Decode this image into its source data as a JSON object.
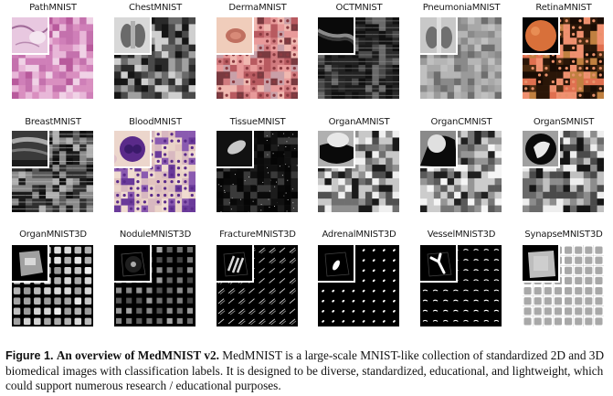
{
  "figure": {
    "panels": [
      {
        "label": "PathMNIST",
        "style": "path",
        "row": 0,
        "col": 0
      },
      {
        "label": "ChestMNIST",
        "style": "chest",
        "row": 0,
        "col": 1
      },
      {
        "label": "DermaMNIST",
        "style": "derma",
        "row": 0,
        "col": 2
      },
      {
        "label": "OCTMNIST",
        "style": "oct",
        "row": 0,
        "col": 3
      },
      {
        "label": "PneumoniaMNIST",
        "style": "pneumonia",
        "row": 0,
        "col": 4
      },
      {
        "label": "RetinaMNIST",
        "style": "retina",
        "row": 0,
        "col": 5
      },
      {
        "label": "BreastMNIST",
        "style": "breast",
        "row": 1,
        "col": 0
      },
      {
        "label": "BloodMNIST",
        "style": "blood",
        "row": 1,
        "col": 1
      },
      {
        "label": "TissueMNIST",
        "style": "tissue",
        "row": 1,
        "col": 2
      },
      {
        "label": "OrganAMNIST",
        "style": "organa",
        "row": 1,
        "col": 3
      },
      {
        "label": "OrganCMNIST",
        "style": "organc",
        "row": 1,
        "col": 4
      },
      {
        "label": "OrganSMNIST",
        "style": "organs",
        "row": 1,
        "col": 5
      },
      {
        "label": "OrganMNIST3D",
        "style": "organ3d",
        "row": 2,
        "col": 0
      },
      {
        "label": "NoduleMNIST3D",
        "style": "nodule3d",
        "row": 2,
        "col": 1
      },
      {
        "label": "FractureMNIST3D",
        "style": "fracture3d",
        "row": 2,
        "col": 2
      },
      {
        "label": "AdrenalMNIST3D",
        "style": "adrenal3d",
        "row": 2,
        "col": 3
      },
      {
        "label": "VesselMNIST3D",
        "style": "vessel3d",
        "row": 2,
        "col": 4
      },
      {
        "label": "SynapseMNIST3D",
        "style": "synapse3d",
        "row": 2,
        "col": 5
      }
    ]
  },
  "caption": {
    "figure_label": "Figure 1.",
    "title": "An overview of MedMNIST v2.",
    "body": "MedMNIST is a large-scale MNIST-like collection of standardized 2D and 3D biomedical images with classification labels. It is designed to be diverse, standardized, educational, and lightweight, which could support numerous research / educational purposes."
  },
  "palettes": {
    "path": [
      "#d98fc0",
      "#c471ad",
      "#e8b7d8",
      "#b85a9c",
      "#f0d2e6",
      "#cf7fb8"
    ],
    "chest": [
      "#2a2a2a",
      "#6a6a6a",
      "#a0a0a0",
      "#4a4a4a",
      "#cfcfcf",
      "#151515"
    ],
    "derma": [
      "#e89a9a",
      "#d07a7e",
      "#f0b8b0",
      "#b85a60",
      "#c9a0a8",
      "#7a3a40"
    ],
    "oct": [
      "#101010",
      "#2a2a2a",
      "#1a1a1a",
      "#4a4a4a",
      "#222222",
      "#6a6a6a"
    ],
    "pneumonia": [
      "#8a8a8a",
      "#a8a8a8",
      "#c0c0c0",
      "#6e6e6e",
      "#9a9a9a",
      "#b5b5b5"
    ],
    "retina": [
      "#2a1608",
      "#e07050",
      "#4a2a10",
      "#c08040",
      "#1a0c04",
      "#f09070"
    ],
    "breast": [
      "#1a1a1a",
      "#5a5a5a",
      "#8a8a8a",
      "#2e2e2e",
      "#b0b0b0",
      "#0e0e0e"
    ],
    "blood": [
      "#ead3c8",
      "#6a3a9a",
      "#e2c4c0",
      "#8a5ab0",
      "#f0dcd0",
      "#d8b8c0"
    ],
    "tissue": [
      "#050505",
      "#101010",
      "#1c1c1c",
      "#080808",
      "#3a3a3a",
      "#0a0a0a"
    ],
    "organa": [
      "#505050",
      "#909090",
      "#1a1a1a",
      "#c8c8c8",
      "#707070",
      "#f0f0f0"
    ],
    "organc": [
      "#5a5a5a",
      "#959595",
      "#202020",
      "#cccccc",
      "#767676",
      "#f5f5f5"
    ],
    "organs": [
      "#4a4a4a",
      "#8c8c8c",
      "#151515",
      "#c0c0c0",
      "#6a6a6a",
      "#eeeeee"
    ]
  }
}
